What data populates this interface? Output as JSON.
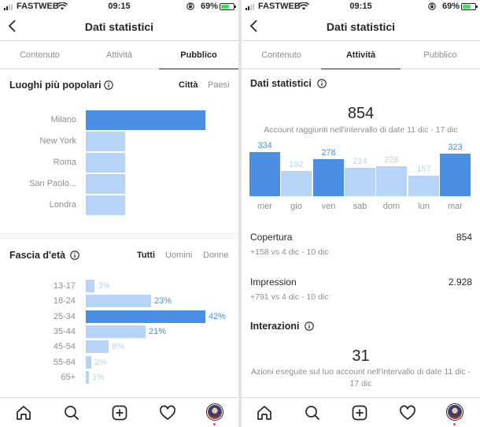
{
  "colors": {
    "bar_dark": "#4a8fe4",
    "bar_light": "#b7d4f7",
    "text_dark_pct": "#4a8fe4",
    "text_light_pct": "#b7d4f7",
    "battery": "#4cd964"
  },
  "left": {
    "status": {
      "carrier": "FASTWEB",
      "time": "09:15",
      "battery_pct": "69%",
      "battery_level": 0.69
    },
    "header": {
      "title": "Dati statistici"
    },
    "tabs": [
      {
        "label": "Contenuto"
      },
      {
        "label": "Attività"
      },
      {
        "label": "Pubblico"
      }
    ],
    "active_tab": 2,
    "places": {
      "title": "Luoghi più popolari",
      "filters": [
        {
          "label": "Città"
        },
        {
          "label": "Paesi"
        }
      ],
      "items": [
        {
          "label": "Milano",
          "value": 1.0,
          "highlight": true
        },
        {
          "label": "New York",
          "value": 0.33,
          "highlight": false
        },
        {
          "label": "Roma",
          "value": 0.33,
          "highlight": false
        },
        {
          "label": "San Paolo...",
          "value": 0.33,
          "highlight": false
        },
        {
          "label": "Londra",
          "value": 0.33,
          "highlight": false
        }
      ]
    },
    "age": {
      "title": "Fascia d'età",
      "filters": [
        {
          "label": "Tutti"
        },
        {
          "label": "Uomini"
        },
        {
          "label": "Donne"
        }
      ],
      "items": [
        {
          "label": "13-17",
          "pct": "3%",
          "value": 3
        },
        {
          "label": "18-24",
          "pct": "23%",
          "value": 23
        },
        {
          "label": "25-34",
          "pct": "42%",
          "value": 42
        },
        {
          "label": "35-44",
          "pct": "21%",
          "value": 21
        },
        {
          "label": "45-54",
          "pct": "8%",
          "value": 8
        },
        {
          "label": "55-64",
          "pct": "2%",
          "value": 2
        },
        {
          "label": "65+",
          "pct": "1%",
          "value": 1
        }
      ]
    }
  },
  "right": {
    "status": {
      "carrier": "FASTWEB",
      "time": "09:15",
      "battery_pct": "69%",
      "battery_level": 0.69
    },
    "header": {
      "title": "Dati statistici"
    },
    "tabs": [
      {
        "label": "Contenuto"
      },
      {
        "label": "Attività"
      },
      {
        "label": "Pubblico"
      }
    ],
    "active_tab": 1,
    "stats": {
      "title": "Dati statistici",
      "total": "854",
      "caption": "Account raggiunti nell'intervallo di date 11 dic - 17 dic",
      "days": [
        {
          "day": "mer",
          "value": 334,
          "label": "334"
        },
        {
          "day": "gio",
          "value": 192,
          "label": "192"
        },
        {
          "day": "ven",
          "value": 278,
          "label": "278"
        },
        {
          "day": "sab",
          "value": 214,
          "label": "214"
        },
        {
          "day": "dom",
          "value": 226,
          "label": "226"
        },
        {
          "day": "lun",
          "value": 157,
          "label": "157"
        },
        {
          "day": "mar",
          "value": 323,
          "label": "323"
        }
      ]
    },
    "metrics": [
      {
        "name": "Copertura",
        "value": "854",
        "sub": "+158 vs 4 dic - 10 dic"
      },
      {
        "name": "Impression",
        "value": "2.928",
        "sub": "+791 vs 4 dic - 10 dic"
      }
    ],
    "interactions": {
      "title": "Interazioni",
      "total": "31",
      "caption": "Azioni eseguite sul tuo account nell'intervallo di date 11 dic - 17 dic"
    }
  },
  "bottom_nav": [
    "home-icon",
    "search-icon",
    "add-post-icon",
    "heart-icon",
    "profile-avatar"
  ]
}
